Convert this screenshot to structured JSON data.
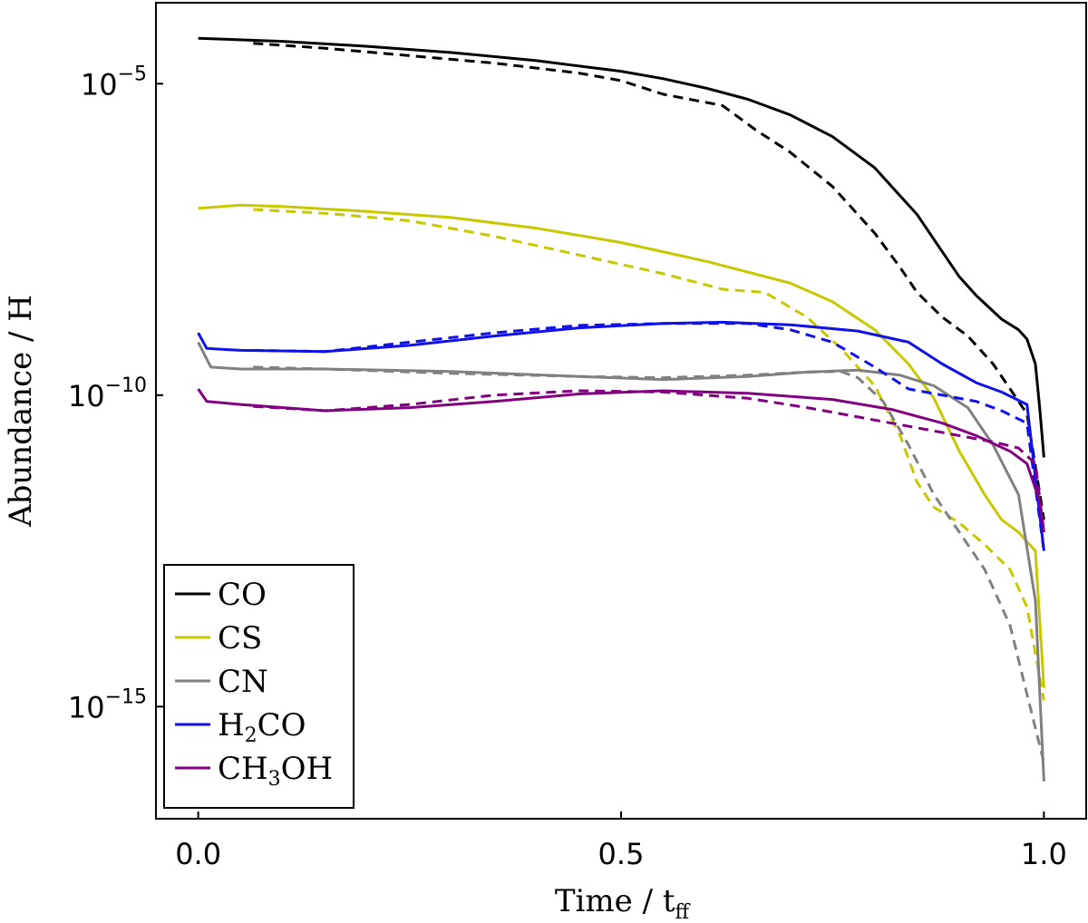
{
  "chart_data": {
    "type": "line",
    "xlabel": "Time / t",
    "xlabel_sub": "ff",
    "ylabel": "Abundance / H",
    "xlim": [
      -0.05,
      1.05
    ],
    "ylim_log10": [
      -16.8,
      -3.7
    ],
    "y_scale": "log",
    "xticks": [
      {
        "value": 0.0,
        "label": "0.0"
      },
      {
        "value": 0.5,
        "label": "0.5"
      },
      {
        "value": 1.0,
        "label": "1.0"
      }
    ],
    "yticks": [
      {
        "log": -5,
        "base": "10",
        "exp": "−5"
      },
      {
        "log": -10,
        "base": "10",
        "exp": "−10"
      },
      {
        "log": -15,
        "base": "10",
        "exp": "−15"
      }
    ],
    "legend_position": "bottom-left",
    "series": [
      {
        "name": "CO",
        "label": "CO",
        "sub": "",
        "tail": "",
        "color": "#000000",
        "solid": [
          [
            0.0,
            -4.27
          ],
          [
            0.1,
            -4.32
          ],
          [
            0.2,
            -4.4
          ],
          [
            0.3,
            -4.5
          ],
          [
            0.4,
            -4.63
          ],
          [
            0.5,
            -4.8
          ],
          [
            0.55,
            -4.92
          ],
          [
            0.6,
            -5.07
          ],
          [
            0.65,
            -5.25
          ],
          [
            0.7,
            -5.5
          ],
          [
            0.75,
            -5.85
          ],
          [
            0.8,
            -6.35
          ],
          [
            0.85,
            -7.1
          ],
          [
            0.88,
            -7.7
          ],
          [
            0.9,
            -8.1
          ],
          [
            0.92,
            -8.4
          ],
          [
            0.95,
            -8.78
          ],
          [
            0.97,
            -8.95
          ],
          [
            0.98,
            -9.1
          ],
          [
            0.99,
            -9.5
          ],
          [
            0.995,
            -10.2
          ],
          [
            1.0,
            -11.0
          ]
        ],
        "dashed": [
          [
            0.065,
            -4.35
          ],
          [
            0.15,
            -4.43
          ],
          [
            0.25,
            -4.55
          ],
          [
            0.35,
            -4.67
          ],
          [
            0.45,
            -4.83
          ],
          [
            0.5,
            -4.95
          ],
          [
            0.55,
            -5.17
          ],
          [
            0.62,
            -5.35
          ],
          [
            0.66,
            -5.75
          ],
          [
            0.7,
            -6.1
          ],
          [
            0.75,
            -6.65
          ],
          [
            0.8,
            -7.4
          ],
          [
            0.83,
            -7.95
          ],
          [
            0.85,
            -8.35
          ],
          [
            0.88,
            -8.75
          ],
          [
            0.91,
            -9.05
          ],
          [
            0.94,
            -9.5
          ],
          [
            0.96,
            -9.9
          ],
          [
            0.98,
            -10.3
          ],
          [
            1.0,
            -12.0
          ]
        ]
      },
      {
        "name": "CS",
        "label": "CS",
        "sub": "",
        "tail": "",
        "color": "#c8c800",
        "solid": [
          [
            0.0,
            -7.0
          ],
          [
            0.05,
            -6.95
          ],
          [
            0.1,
            -6.97
          ],
          [
            0.2,
            -7.05
          ],
          [
            0.3,
            -7.15
          ],
          [
            0.4,
            -7.32
          ],
          [
            0.5,
            -7.55
          ],
          [
            0.6,
            -7.85
          ],
          [
            0.7,
            -8.2
          ],
          [
            0.75,
            -8.5
          ],
          [
            0.8,
            -8.95
          ],
          [
            0.84,
            -9.5
          ],
          [
            0.87,
            -10.05
          ],
          [
            0.9,
            -10.9
          ],
          [
            0.93,
            -11.6
          ],
          [
            0.95,
            -12.0
          ],
          [
            0.97,
            -12.2
          ],
          [
            0.99,
            -12.5
          ],
          [
            1.0,
            -14.7
          ]
        ],
        "dashed": [
          [
            0.065,
            -7.02
          ],
          [
            0.15,
            -7.08
          ],
          [
            0.25,
            -7.2
          ],
          [
            0.35,
            -7.45
          ],
          [
            0.45,
            -7.75
          ],
          [
            0.55,
            -8.05
          ],
          [
            0.62,
            -8.3
          ],
          [
            0.67,
            -8.35
          ],
          [
            0.72,
            -8.75
          ],
          [
            0.76,
            -9.25
          ],
          [
            0.8,
            -9.85
          ],
          [
            0.83,
            -10.65
          ],
          [
            0.85,
            -11.4
          ],
          [
            0.87,
            -11.8
          ],
          [
            0.9,
            -12.05
          ],
          [
            0.93,
            -12.4
          ],
          [
            0.96,
            -12.8
          ],
          [
            0.98,
            -13.4
          ],
          [
            1.0,
            -14.9
          ]
        ]
      },
      {
        "name": "CN",
        "label": "CN",
        "sub": "",
        "tail": "",
        "color": "#808080",
        "solid": [
          [
            0.0,
            -9.15
          ],
          [
            0.015,
            -9.55
          ],
          [
            0.05,
            -9.58
          ],
          [
            0.15,
            -9.58
          ],
          [
            0.3,
            -9.62
          ],
          [
            0.45,
            -9.7
          ],
          [
            0.55,
            -9.75
          ],
          [
            0.65,
            -9.7
          ],
          [
            0.72,
            -9.63
          ],
          [
            0.78,
            -9.6
          ],
          [
            0.83,
            -9.68
          ],
          [
            0.87,
            -9.85
          ],
          [
            0.91,
            -10.2
          ],
          [
            0.94,
            -10.8
          ],
          [
            0.97,
            -11.6
          ],
          [
            0.99,
            -13.3
          ],
          [
            1.0,
            -16.2
          ]
        ],
        "dashed": [
          [
            0.065,
            -9.55
          ],
          [
            0.15,
            -9.58
          ],
          [
            0.3,
            -9.65
          ],
          [
            0.45,
            -9.7
          ],
          [
            0.55,
            -9.72
          ],
          [
            0.65,
            -9.68
          ],
          [
            0.72,
            -9.63
          ],
          [
            0.76,
            -9.62
          ],
          [
            0.78,
            -9.72
          ],
          [
            0.81,
            -10.1
          ],
          [
            0.84,
            -10.8
          ],
          [
            0.87,
            -11.6
          ],
          [
            0.9,
            -12.2
          ],
          [
            0.93,
            -12.8
          ],
          [
            0.96,
            -13.7
          ],
          [
            0.98,
            -14.8
          ],
          [
            1.0,
            -15.9
          ]
        ]
      },
      {
        "name": "H2CO",
        "label": "H",
        "sub": "2",
        "tail": "CO",
        "color": "#1010e8",
        "solid": [
          [
            0.0,
            -9.0
          ],
          [
            0.01,
            -9.25
          ],
          [
            0.05,
            -9.28
          ],
          [
            0.15,
            -9.3
          ],
          [
            0.25,
            -9.2
          ],
          [
            0.35,
            -9.05
          ],
          [
            0.45,
            -8.92
          ],
          [
            0.55,
            -8.85
          ],
          [
            0.62,
            -8.83
          ],
          [
            0.7,
            -8.87
          ],
          [
            0.78,
            -8.97
          ],
          [
            0.84,
            -9.15
          ],
          [
            0.88,
            -9.5
          ],
          [
            0.92,
            -9.8
          ],
          [
            0.95,
            -9.95
          ],
          [
            0.98,
            -10.15
          ],
          [
            1.0,
            -12.5
          ]
        ],
        "dashed": [
          [
            0.065,
            -9.28
          ],
          [
            0.15,
            -9.3
          ],
          [
            0.25,
            -9.15
          ],
          [
            0.35,
            -9.0
          ],
          [
            0.45,
            -8.88
          ],
          [
            0.55,
            -8.85
          ],
          [
            0.65,
            -8.85
          ],
          [
            0.7,
            -8.95
          ],
          [
            0.75,
            -9.15
          ],
          [
            0.8,
            -9.55
          ],
          [
            0.84,
            -9.9
          ],
          [
            0.88,
            -10.0
          ],
          [
            0.92,
            -10.1
          ],
          [
            0.95,
            -10.25
          ],
          [
            0.98,
            -10.45
          ],
          [
            1.0,
            -12.5
          ]
        ]
      },
      {
        "name": "CH3OH",
        "label": "CH",
        "sub": "3",
        "tail": "OH",
        "color": "#800080",
        "solid": [
          [
            0.0,
            -9.9
          ],
          [
            0.01,
            -10.1
          ],
          [
            0.05,
            -10.15
          ],
          [
            0.15,
            -10.25
          ],
          [
            0.25,
            -10.2
          ],
          [
            0.35,
            -10.1
          ],
          [
            0.45,
            -9.98
          ],
          [
            0.55,
            -9.93
          ],
          [
            0.65,
            -9.97
          ],
          [
            0.75,
            -10.07
          ],
          [
            0.82,
            -10.23
          ],
          [
            0.88,
            -10.45
          ],
          [
            0.92,
            -10.65
          ],
          [
            0.96,
            -10.9
          ],
          [
            0.98,
            -11.1
          ],
          [
            0.995,
            -11.7
          ],
          [
            1.0,
            -12.2
          ]
        ],
        "dashed": [
          [
            0.065,
            -10.18
          ],
          [
            0.15,
            -10.25
          ],
          [
            0.25,
            -10.15
          ],
          [
            0.35,
            -10.0
          ],
          [
            0.45,
            -9.93
          ],
          [
            0.55,
            -9.95
          ],
          [
            0.65,
            -10.05
          ],
          [
            0.72,
            -10.2
          ],
          [
            0.8,
            -10.4
          ],
          [
            0.88,
            -10.6
          ],
          [
            0.94,
            -10.75
          ],
          [
            0.97,
            -10.85
          ],
          [
            0.99,
            -11.1
          ],
          [
            1.0,
            -12.2
          ]
        ]
      }
    ]
  }
}
